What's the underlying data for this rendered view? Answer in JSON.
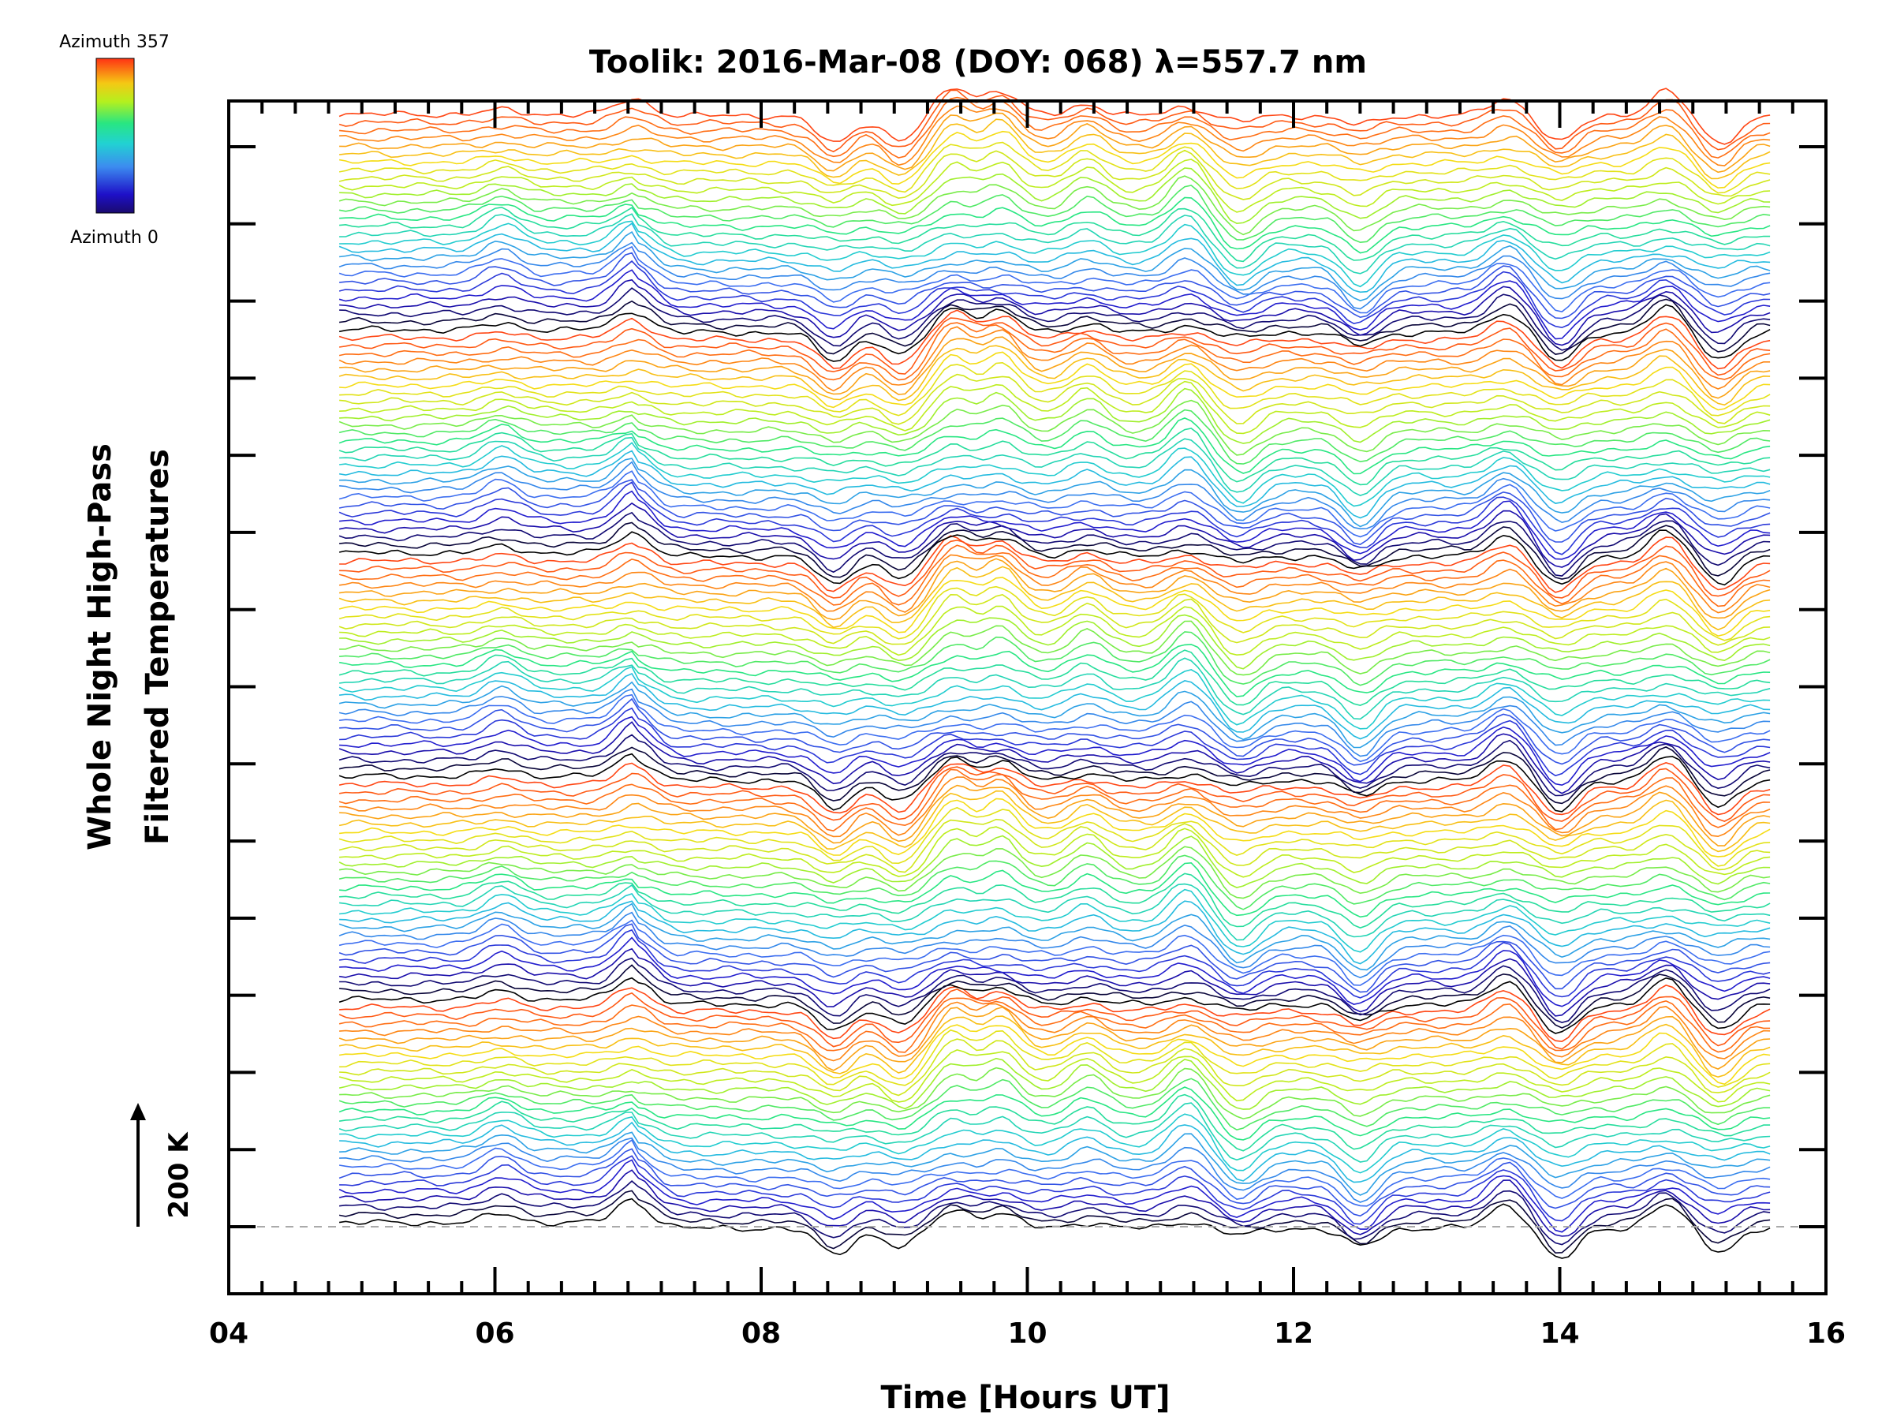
{
  "chart_data": {
    "type": "line",
    "title": "Toolik: 2016-Mar-08 (DOY: 068) λ=557.7 nm",
    "xlabel": "Time [Hours UT]",
    "ylabel_line1": "Whole Night High-Pass",
    "ylabel_line2": "Filtered Temperatures",
    "xlim": [
      4,
      16
    ],
    "x_ticks": [
      "04",
      "06",
      "08",
      "10",
      "12",
      "14",
      "16"
    ],
    "x_tick_values": [
      4,
      6,
      8,
      10,
      12,
      14,
      16
    ],
    "x_minor_step": 0.25,
    "y_major_ticks": 15,
    "data_range": [
      4.83,
      15.58
    ],
    "series_count": 140,
    "azimuth_range": [
      0,
      357
    ],
    "offset_step_K": 10,
    "scale_label": "200 K",
    "legend": {
      "top_label": "Azimuth 357",
      "bottom_label": "Azimuth 0",
      "colors": [
        "#000000",
        "#1e10c8",
        "#3c6ef0",
        "#21c8dc",
        "#28e682",
        "#b4f01e",
        "#f5dc14",
        "#ff7814",
        "#ff3214"
      ]
    },
    "baseline_color": "#aaaaaa",
    "events": [
      {
        "time": 6.05,
        "amp": 0.55
      },
      {
        "time": 7.05,
        "amp": 0.9
      },
      {
        "time": 8.55,
        "amp": -0.9
      },
      {
        "time": 9.05,
        "amp": -0.8
      },
      {
        "time": 9.45,
        "amp": 1.0
      },
      {
        "time": 9.8,
        "amp": 1.0
      },
      {
        "time": 10.45,
        "amp": 0.7
      },
      {
        "time": 11.2,
        "amp": 1.0
      },
      {
        "time": 11.6,
        "amp": -0.8
      },
      {
        "time": 12.5,
        "amp": -1.0
      },
      {
        "time": 13.6,
        "amp": 0.8
      },
      {
        "time": 14.0,
        "amp": -1.0
      },
      {
        "time": 14.8,
        "amp": 0.8
      },
      {
        "time": 15.2,
        "amp": -0.9
      }
    ]
  }
}
